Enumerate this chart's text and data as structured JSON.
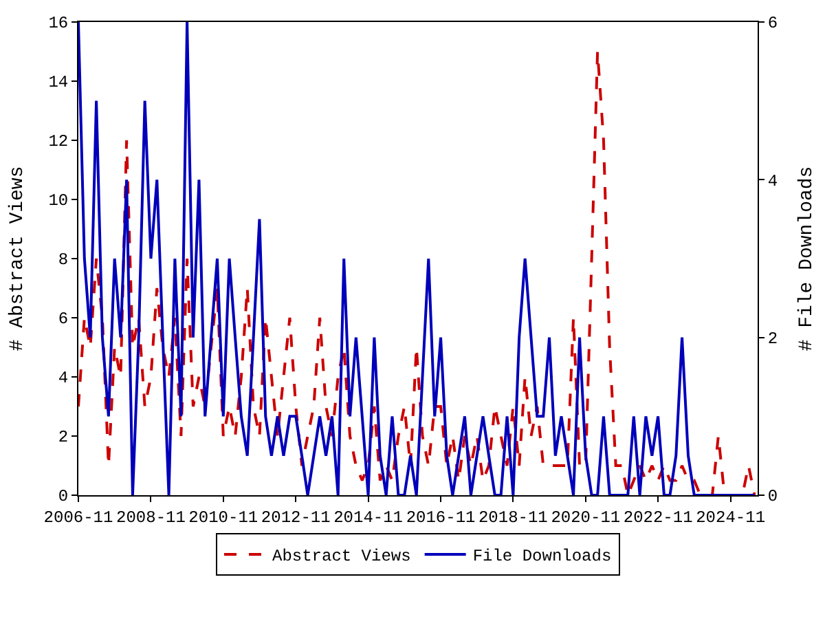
{
  "chart_data": {
    "type": "line",
    "xlabel": null,
    "ylabel": "# Abstract Views",
    "y2label": "# File Downloads",
    "x": [
      "2006-11",
      "2007-01",
      "2007-03",
      "2007-05",
      "2007-07",
      "2007-09",
      "2007-11",
      "2008-01",
      "2008-03",
      "2008-05",
      "2008-07",
      "2008-09",
      "2008-11",
      "2009-01",
      "2009-03",
      "2009-05",
      "2009-07",
      "2009-09",
      "2009-11",
      "2010-01",
      "2010-03",
      "2010-05",
      "2010-07",
      "2010-09",
      "2010-11",
      "2011-01",
      "2011-03",
      "2011-05",
      "2011-07",
      "2011-09",
      "2011-11",
      "2012-01",
      "2012-03",
      "2012-05",
      "2012-07",
      "2012-09",
      "2012-11",
      "2013-01",
      "2013-03",
      "2013-05",
      "2013-07",
      "2013-09",
      "2013-11",
      "2014-01",
      "2014-03",
      "2014-05",
      "2014-07",
      "2014-09",
      "2014-11",
      "2015-01",
      "2015-03",
      "2015-05",
      "2015-07",
      "2015-09",
      "2015-11",
      "2016-01",
      "2016-03",
      "2016-05",
      "2016-07",
      "2016-09",
      "2016-11",
      "2017-01",
      "2017-03",
      "2017-05",
      "2017-07",
      "2017-09",
      "2017-11",
      "2018-01",
      "2018-03",
      "2018-05",
      "2018-07",
      "2018-09",
      "2018-11",
      "2019-01",
      "2019-03",
      "2019-05",
      "2019-07",
      "2019-09",
      "2019-11",
      "2020-01",
      "2020-03",
      "2020-05",
      "2020-07",
      "2020-09",
      "2020-11",
      "2021-01",
      "2021-03",
      "2021-05",
      "2021-07",
      "2021-09",
      "2021-11",
      "2022-01",
      "2022-03",
      "2022-05",
      "2022-07",
      "2022-09",
      "2022-11",
      "2023-01",
      "2023-03",
      "2023-05",
      "2023-07",
      "2023-09",
      "2023-11",
      "2024-01",
      "2024-03",
      "2024-05",
      "2024-07",
      "2024-09",
      "2024-11",
      "2025-01",
      "2025-03",
      "2025-05",
      "2025-07"
    ],
    "series": [
      {
        "name": "Abstract Views",
        "color": "#cc0000",
        "line_style": "dashed",
        "values": [
          3,
          6,
          5,
          8,
          6,
          1,
          5,
          4,
          12,
          5,
          6,
          3,
          4,
          7,
          5,
          4,
          6,
          2,
          8,
          3,
          4,
          3,
          5,
          7,
          2,
          3,
          2,
          4,
          7,
          3,
          2,
          6,
          4,
          2,
          4,
          6,
          3,
          1,
          2,
          3,
          6,
          3,
          2,
          4,
          5,
          2,
          1,
          0.5,
          1,
          3,
          0.5,
          1,
          0.5,
          2,
          3,
          1,
          5,
          2,
          1,
          3,
          3,
          1,
          2,
          0.5,
          2,
          1,
          2,
          0.5,
          1,
          3,
          2,
          1,
          3,
          1,
          4,
          2,
          3,
          1,
          1,
          1,
          1,
          1,
          6,
          1,
          1,
          8,
          15,
          12,
          5,
          1,
          1,
          0,
          0.5,
          1,
          0.5,
          1,
          0.5,
          1,
          0.5,
          0.5,
          1,
          0.5,
          0.5,
          0,
          0,
          0,
          2,
          0,
          0,
          0,
          0,
          1,
          0
        ]
      },
      {
        "name": "File Downloads",
        "color": "#0000bb",
        "line_style": "solid",
        "axis": "y2",
        "values": [
          6,
          3,
          2,
          5,
          2,
          1,
          3,
          2,
          4,
          0,
          2,
          5,
          3,
          4,
          2,
          0,
          3,
          1,
          6,
          2,
          4,
          1,
          2,
          3,
          1,
          3,
          2,
          1,
          0.5,
          2,
          3.5,
          1,
          0.5,
          1,
          0.5,
          1,
          1,
          0.5,
          0,
          0.5,
          1,
          0.5,
          1,
          0,
          3,
          1,
          2,
          1,
          0,
          2,
          0.5,
          0,
          1,
          0,
          0,
          0.5,
          0,
          1.5,
          3,
          1,
          2,
          0.5,
          0,
          0.5,
          1,
          0,
          0.5,
          1,
          0.5,
          0,
          0,
          1,
          0,
          2,
          3,
          2,
          1,
          1,
          2,
          0.5,
          1,
          0.5,
          0,
          2,
          0.5,
          0,
          0,
          1,
          0,
          0,
          0,
          0,
          1,
          0,
          1,
          0.5,
          1,
          0,
          0,
          0.5,
          2,
          0.5,
          0,
          0,
          0,
          0,
          0,
          0,
          0,
          0,
          0,
          0,
          0
        ]
      }
    ],
    "xlim": [
      "2006-11",
      "2025-08"
    ],
    "xticks": [
      {
        "value": "2006-11",
        "label": "2006-11"
      },
      {
        "value": "2008-11",
        "label": "2008-11"
      },
      {
        "value": "2010-11",
        "label": "2010-11"
      },
      {
        "value": "2012-11",
        "label": "2012-11"
      },
      {
        "value": "2014-11",
        "label": "2014-11"
      },
      {
        "value": "2016-11",
        "label": "2016-11"
      },
      {
        "value": "2018-11",
        "label": "2018-11"
      },
      {
        "value": "2020-11",
        "label": "2020-11"
      },
      {
        "value": "2022-11",
        "label": "2022-11"
      },
      {
        "value": "2024-11",
        "label": "2024-11"
      }
    ],
    "ylim": [
      0,
      16
    ],
    "yticks": [
      0,
      2,
      4,
      6,
      8,
      10,
      12,
      14,
      16
    ],
    "y2lim": [
      0,
      6
    ],
    "y2ticks": [
      0,
      2,
      4,
      6
    ],
    "legend": "bottom"
  }
}
